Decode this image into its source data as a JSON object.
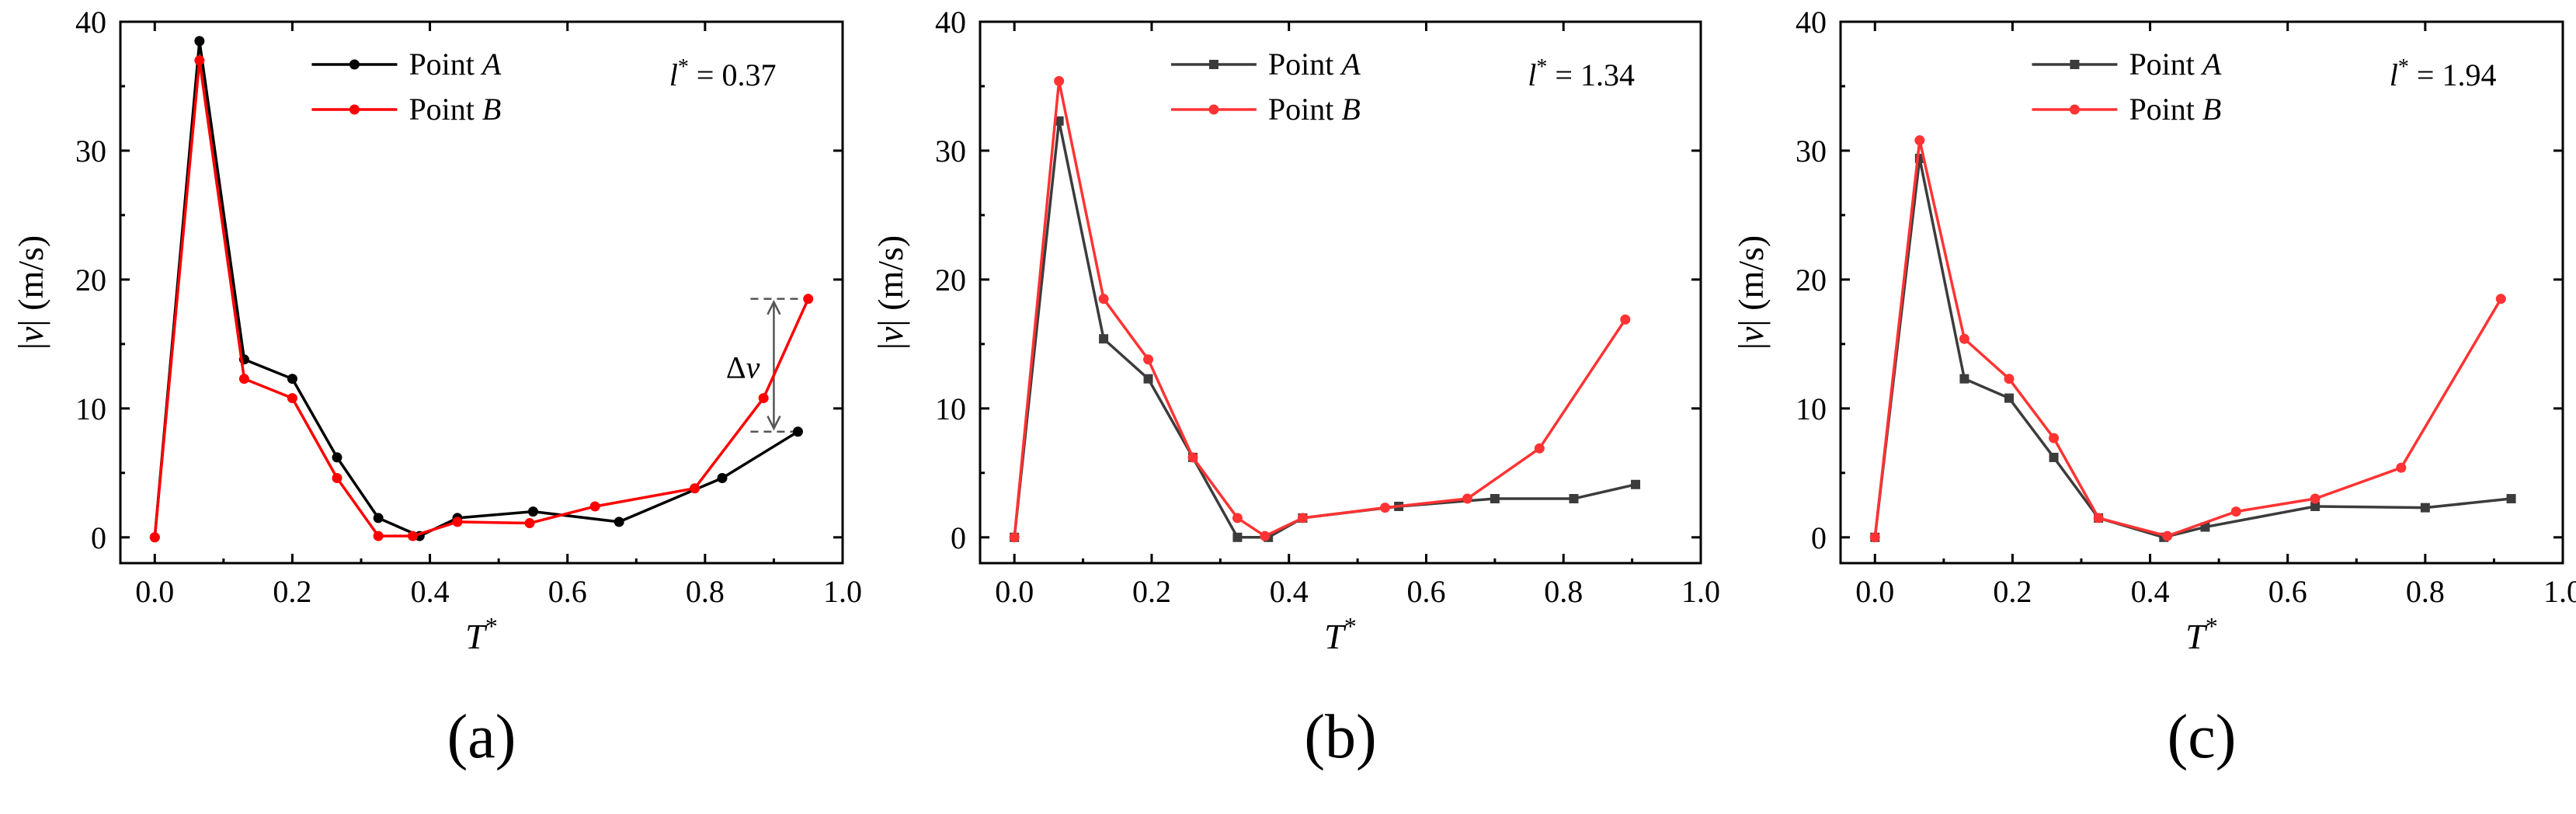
{
  "figure": {
    "panel_labels": [
      "(a)",
      "(b)",
      "(c)"
    ]
  },
  "chart_data": [
    {
      "type": "line",
      "panel": "(a)",
      "xlabel": "T*",
      "ylabel": "|v| (m/s)",
      "xlim": [
        -0.05,
        1.0
      ],
      "ylim": [
        -2,
        40
      ],
      "xticks": [
        "0.0",
        "0.2",
        "0.4",
        "0.6",
        "0.8",
        "1.0"
      ],
      "yticks": [
        "0",
        "10",
        "20",
        "30",
        "40"
      ],
      "legend": "top-right",
      "parameter_label": "l* = 0.37",
      "series": [
        {
          "name": "Point A",
          "color": "#000000",
          "marker": "circle",
          "x": [
            0.0,
            0.065,
            0.13,
            0.2,
            0.265,
            0.325,
            0.385,
            0.44,
            0.55,
            0.675,
            0.825,
            0.935
          ],
          "y": [
            0.0,
            38.5,
            13.8,
            12.3,
            6.2,
            1.5,
            0.1,
            1.5,
            2.0,
            1.2,
            4.6,
            8.2
          ]
        },
        {
          "name": "Point B",
          "color": "#ff0000",
          "marker": "circle",
          "x": [
            0.0,
            0.065,
            0.13,
            0.2,
            0.265,
            0.325,
            0.375,
            0.44,
            0.545,
            0.64,
            0.785,
            0.885,
            0.95
          ],
          "y": [
            0.0,
            37.0,
            12.3,
            10.8,
            4.6,
            0.1,
            0.1,
            1.2,
            1.1,
            2.4,
            3.8,
            10.8,
            18.5
          ]
        }
      ],
      "annotation": {
        "label": "Δv",
        "x": 0.9,
        "y_from": 8.2,
        "y_to": 18.5
      }
    },
    {
      "type": "line",
      "panel": "(b)",
      "xlabel": "T*",
      "ylabel": "|v| (m/s)",
      "xlim": [
        -0.05,
        1.0
      ],
      "ylim": [
        -2,
        40
      ],
      "xticks": [
        "0.0",
        "0.2",
        "0.4",
        "0.6",
        "0.8",
        "1.0"
      ],
      "yticks": [
        "0",
        "10",
        "20",
        "30",
        "40"
      ],
      "legend": "top-right",
      "parameter_label": "l* = 1.34",
      "series": [
        {
          "name": "Point A",
          "color": "#3c3c3c",
          "marker": "square",
          "x": [
            0.0,
            0.065,
            0.13,
            0.195,
            0.26,
            0.325,
            0.37,
            0.42,
            0.56,
            0.7,
            0.815,
            0.905
          ],
          "y": [
            0.0,
            32.3,
            15.4,
            12.3,
            6.2,
            0.0,
            0.0,
            1.5,
            2.4,
            3.0,
            3.0,
            4.1
          ]
        },
        {
          "name": "Point B",
          "color": "#ff3333",
          "marker": "circle",
          "x": [
            0.0,
            0.065,
            0.13,
            0.195,
            0.26,
            0.325,
            0.365,
            0.42,
            0.54,
            0.66,
            0.765,
            0.89
          ],
          "y": [
            0.0,
            35.4,
            18.5,
            13.8,
            6.2,
            1.5,
            0.1,
            1.5,
            2.3,
            3.0,
            6.9,
            16.9
          ]
        }
      ]
    },
    {
      "type": "line",
      "panel": "(c)",
      "xlabel": "T*",
      "ylabel": "|v| (m/s)",
      "xlim": [
        -0.05,
        1.0
      ],
      "ylim": [
        -2,
        40
      ],
      "xticks": [
        "0.0",
        "0.2",
        "0.4",
        "0.6",
        "0.8",
        "1.0"
      ],
      "yticks": [
        "0",
        "10",
        "20",
        "30",
        "40"
      ],
      "legend": "top-right",
      "parameter_label": "l* = 1.94",
      "series": [
        {
          "name": "Point A",
          "color": "#3c3c3c",
          "marker": "square",
          "x": [
            0.0,
            0.065,
            0.13,
            0.195,
            0.26,
            0.325,
            0.42,
            0.48,
            0.64,
            0.8,
            0.925
          ],
          "y": [
            0.0,
            29.4,
            12.3,
            10.8,
            6.2,
            1.5,
            0.0,
            0.8,
            2.4,
            2.3,
            3.0
          ]
        },
        {
          "name": "Point B",
          "color": "#ff3333",
          "marker": "circle",
          "x": [
            0.0,
            0.065,
            0.13,
            0.195,
            0.26,
            0.325,
            0.425,
            0.525,
            0.64,
            0.765,
            0.91
          ],
          "y": [
            0.0,
            30.8,
            15.4,
            12.3,
            7.7,
            1.5,
            0.1,
            2.0,
            3.0,
            5.4,
            18.5
          ]
        }
      ]
    }
  ]
}
